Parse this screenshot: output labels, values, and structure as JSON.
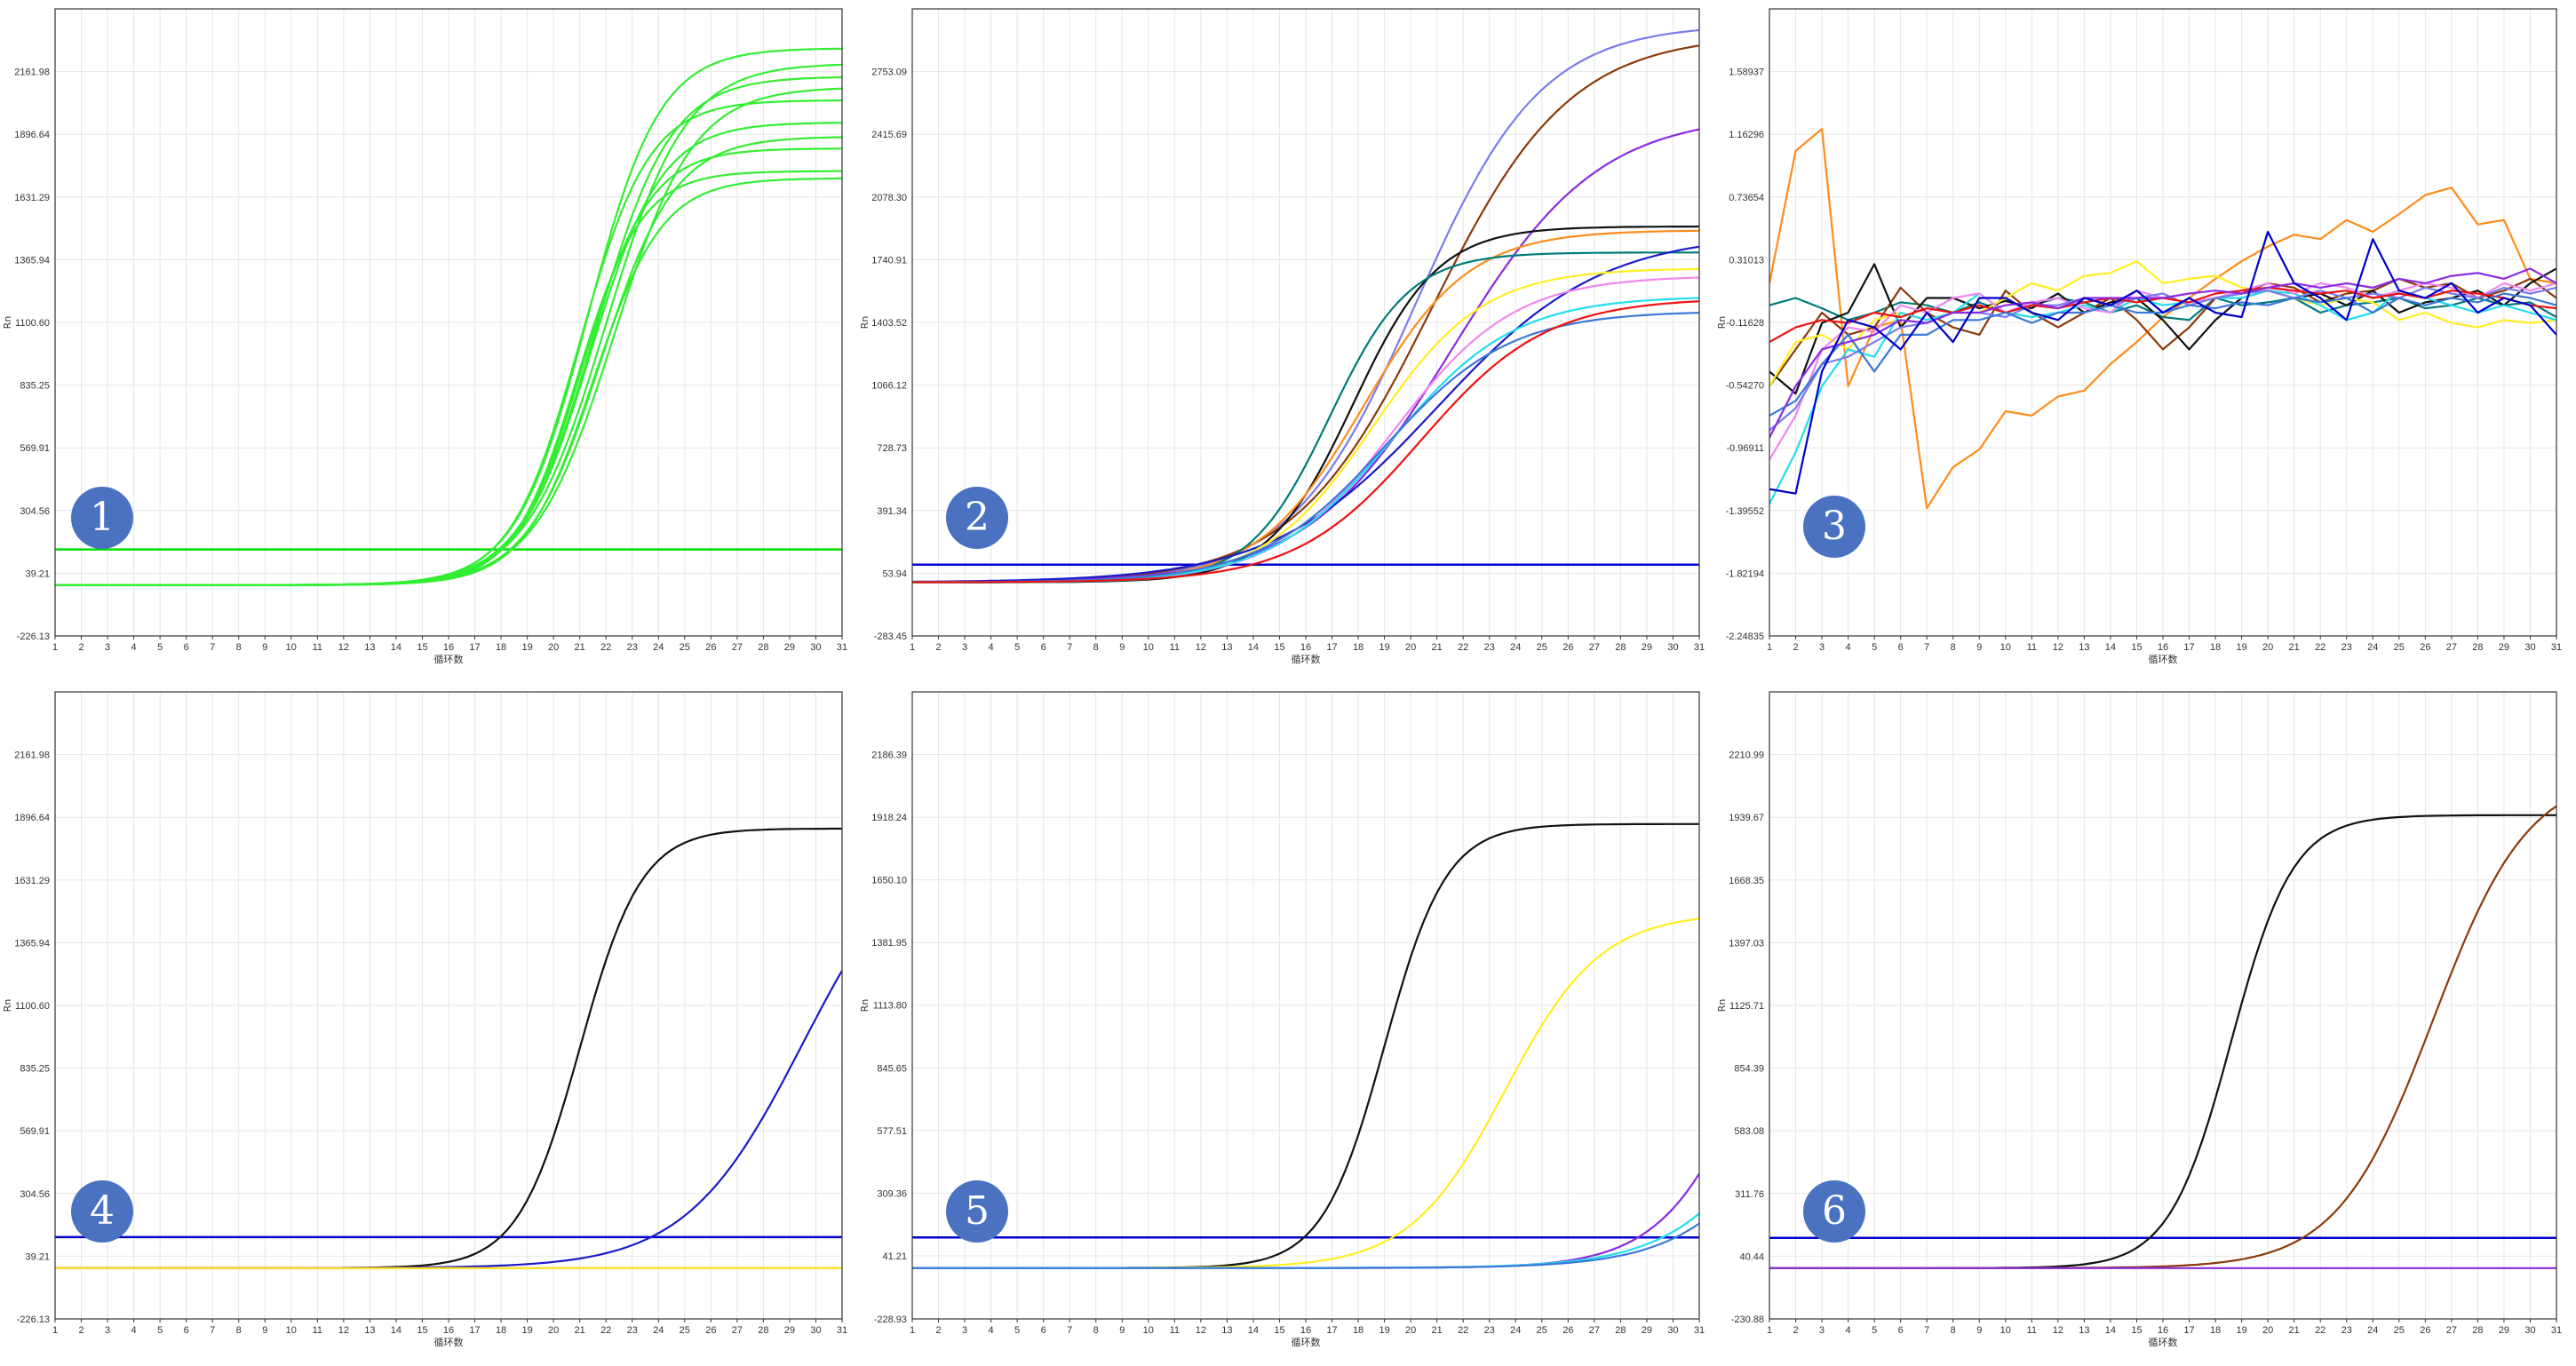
{
  "figure": {
    "badge_labels": [
      "1",
      "2",
      "3",
      "4",
      "5",
      "6"
    ]
  },
  "chart_data": [
    {
      "type": "line",
      "badge": "1",
      "xlabel": "循环数",
      "ylabel": "Rn",
      "x_ticks": [
        "1",
        "2",
        "3",
        "4",
        "5",
        "6",
        "7",
        "8",
        "9",
        "10",
        "11",
        "12",
        "13",
        "14",
        "15",
        "16",
        "17",
        "18",
        "19",
        "20",
        "21",
        "22",
        "23",
        "24",
        "25",
        "26",
        "27",
        "28",
        "29",
        "30",
        "31"
      ],
      "y_ticks": [
        "-226.13",
        "39.21",
        "304.56",
        "569.91",
        "835.25",
        "1100.60",
        "1365.94",
        "1631.29",
        "1896.64",
        "2161.98"
      ],
      "xlim": [
        1,
        31
      ],
      "ylim": [
        -226.13,
        2427.3
      ],
      "grid": true,
      "threshold": {
        "value": 140,
        "color": "#00dd00"
      },
      "series": [
        {
          "color": "#33ee33",
          "baseline": -11,
          "plateau": 2272,
          "midpoint": 21.3,
          "steepness": 0.73
        },
        {
          "color": "#33ee33",
          "baseline": -11,
          "plateau": 2208,
          "midpoint": 22.0,
          "steepness": 0.66
        },
        {
          "color": "#33ee33",
          "baseline": -11,
          "plateau": 2152,
          "midpoint": 21.6,
          "steepness": 0.7
        },
        {
          "color": "#33ee33",
          "baseline": -11,
          "plateau": 2108,
          "midpoint": 22.3,
          "steepness": 0.66
        },
        {
          "color": "#33ee33",
          "baseline": -11,
          "plateau": 2052,
          "midpoint": 21.0,
          "steepness": 0.76
        },
        {
          "color": "#33ee33",
          "baseline": -11,
          "plateau": 1958,
          "midpoint": 21.4,
          "steepness": 0.74
        },
        {
          "color": "#33ee33",
          "baseline": -11,
          "plateau": 1898,
          "midpoint": 21.8,
          "steepness": 0.71
        },
        {
          "color": "#33ee33",
          "baseline": -11,
          "plateau": 1848,
          "midpoint": 21.1,
          "steepness": 0.78
        },
        {
          "color": "#33ee33",
          "baseline": -11,
          "plateau": 1752,
          "midpoint": 20.9,
          "steepness": 0.82
        },
        {
          "color": "#33ee33",
          "baseline": -11,
          "plateau": 1722,
          "midpoint": 21.5,
          "steepness": 0.76
        }
      ]
    },
    {
      "type": "line",
      "badge": "2",
      "xlabel": "循环数",
      "ylabel": "Rn",
      "x_ticks": [
        "1",
        "2",
        "3",
        "4",
        "5",
        "6",
        "7",
        "8",
        "9",
        "10",
        "11",
        "12",
        "13",
        "14",
        "15",
        "16",
        "17",
        "18",
        "19",
        "20",
        "21",
        "22",
        "23",
        "24",
        "25",
        "26",
        "27",
        "28",
        "29",
        "30",
        "31"
      ],
      "y_ticks": [
        "-283.45",
        "53.94",
        "391.34",
        "728.73",
        "1066.12",
        "1403.52",
        "1740.91",
        "2078.30",
        "2415.69",
        "2753.09"
      ],
      "xlim": [
        1,
        31
      ],
      "ylim": [
        -283.45,
        3090.48
      ],
      "grid": true,
      "threshold": {
        "value": 100,
        "color": "#0000cc"
      },
      "series": [
        {
          "color": "#7b7bee",
          "baseline": 5,
          "plateau": 3003,
          "midpoint": 20.2,
          "steepness": 0.42
        },
        {
          "color": "#8b3a0a",
          "baseline": 5,
          "plateau": 2948,
          "midpoint": 20.8,
          "steepness": 0.38
        },
        {
          "color": "#8a2be2",
          "baseline": 5,
          "plateau": 2520,
          "midpoint": 21.6,
          "steepness": 0.36
        },
        {
          "color": "#111111",
          "baseline": 5,
          "plateau": 1915,
          "midpoint": 17.8,
          "steepness": 0.62
        },
        {
          "color": "#ff8c1a",
          "baseline": 5,
          "plateau": 1895,
          "midpoint": 18.2,
          "steepness": 0.5
        },
        {
          "color": "#007a7a",
          "baseline": 5,
          "plateau": 1775,
          "midpoint": 16.9,
          "steepness": 0.66
        },
        {
          "color": "#1a1acc",
          "baseline": 5,
          "plateau": 1880,
          "midpoint": 21.0,
          "steepness": 0.32
        },
        {
          "color": "#ffee22",
          "baseline": 5,
          "plateau": 1690,
          "midpoint": 18.6,
          "steepness": 0.48
        },
        {
          "color": "#ee88ee",
          "baseline": 5,
          "plateau": 1650,
          "midpoint": 19.4,
          "steepness": 0.44
        },
        {
          "color": "#22ddee",
          "baseline": 5,
          "plateau": 1540,
          "midpoint": 19.3,
          "steepness": 0.43
        },
        {
          "color": "#3c78d8",
          "baseline": 5,
          "plateau": 1460,
          "midpoint": 19.0,
          "steepness": 0.42
        },
        {
          "color": "#ee1111",
          "baseline": 5,
          "plateau": 1530,
          "midpoint": 20.4,
          "steepness": 0.42
        }
      ]
    },
    {
      "type": "line",
      "badge": "3",
      "xlabel": "循环数",
      "ylabel": "Rn",
      "x_ticks": [
        "1",
        "2",
        "3",
        "4",
        "5",
        "6",
        "7",
        "8",
        "9",
        "10",
        "11",
        "12",
        "13",
        "14",
        "15",
        "16",
        "17",
        "18",
        "19",
        "20",
        "21",
        "22",
        "23",
        "24",
        "25",
        "26",
        "27",
        "28",
        "29",
        "30",
        "31"
      ],
      "y_ticks": [
        "-2.24835",
        "-1.82194",
        "-1.39552",
        "-0.96911",
        "-0.54270",
        "-0.11628",
        "0.31013",
        "0.73654",
        "1.16296",
        "1.58937"
      ],
      "xlim": [
        1,
        31
      ],
      "ylim": [
        -2.24835,
        2.01578
      ],
      "grid": true,
      "series": [
        {
          "color": "#ff8c1a",
          "values": [
            0.15,
            1.05,
            1.2,
            -0.55,
            -0.15,
            -0.1,
            -1.38,
            -1.1,
            -0.98,
            -0.72,
            -0.75,
            -0.62,
            -0.58,
            -0.4,
            -0.25,
            -0.08,
            0.05,
            0.18,
            0.3,
            0.4,
            0.48,
            0.45,
            0.58,
            0.5,
            0.62,
            0.75,
            0.8,
            0.55,
            0.58,
            0.18,
            0.15
          ]
        },
        {
          "color": "#007a7a",
          "values": [
            0.0,
            0.05,
            -0.02,
            -0.1,
            -0.05,
            0.02,
            0.0,
            -0.05,
            0.02,
            -0.05,
            0.0,
            0.05,
            0.02,
            -0.05,
            0.0,
            -0.08,
            -0.1,
            0.05,
            0.0,
            0.02,
            0.05,
            -0.05,
            0.0,
            0.02,
            0.05,
            -0.02,
            0.0,
            0.05,
            0.0,
            0.02,
            -0.08
          ]
        },
        {
          "color": "#8b3a0a",
          "values": [
            -0.55,
            -0.3,
            -0.05,
            -0.2,
            -0.15,
            0.12,
            -0.05,
            -0.15,
            -0.2,
            0.1,
            -0.05,
            -0.15,
            -0.05,
            0.05,
            -0.1,
            -0.3,
            -0.15,
            0.05,
            0.08,
            0.15,
            0.12,
            0.02,
            0.08,
            0.1,
            0.18,
            0.12,
            0.15,
            0.05,
            0.1,
            0.18,
            0.05
          ]
        },
        {
          "color": "#111111",
          "values": [
            -0.45,
            -0.6,
            -0.12,
            -0.05,
            0.28,
            -0.15,
            0.05,
            0.05,
            -0.02,
            0.03,
            -0.02,
            0.08,
            -0.05,
            0.02,
            0.05,
            -0.1,
            -0.3,
            -0.1,
            0.05,
            0.1,
            0.05,
            0.08,
            0.0,
            0.1,
            -0.05,
            0.02,
            0.05,
            0.1,
            0.0,
            0.15,
            0.25
          ]
        },
        {
          "color": "#ffee22",
          "values": [
            -0.55,
            -0.25,
            -0.2,
            -0.3,
            -0.1,
            -0.05,
            -0.1,
            -0.05,
            -0.05,
            0.05,
            0.15,
            0.1,
            0.2,
            0.22,
            0.3,
            0.15,
            0.18,
            0.2,
            0.12,
            0.1,
            0.05,
            0.0,
            0.05,
            0.02,
            -0.1,
            -0.05,
            -0.12,
            -0.15,
            -0.1,
            -0.12,
            -0.1
          ]
        },
        {
          "color": "#22ddee",
          "values": [
            -1.35,
            -1.0,
            -0.55,
            -0.3,
            -0.35,
            -0.05,
            -0.1,
            -0.05,
            0.08,
            -0.05,
            -0.08,
            -0.05,
            0.0,
            -0.05,
            0.05,
            0.0,
            0.02,
            0.05,
            0.05,
            0.1,
            0.08,
            0.0,
            -0.1,
            -0.05,
            0.1,
            0.05,
            0.0,
            -0.05,
            0.0,
            -0.05,
            -0.1
          ]
        },
        {
          "color": "#ee88ee",
          "values": [
            -1.05,
            -0.75,
            -0.3,
            -0.15,
            -0.18,
            0.0,
            -0.05,
            0.05,
            0.08,
            -0.05,
            0.02,
            0.05,
            -0.02,
            -0.05,
            0.1,
            0.05,
            0.02,
            0.05,
            0.1,
            0.15,
            0.08,
            0.15,
            0.12,
            0.05,
            0.1,
            0.15,
            0.12,
            0.05,
            0.15,
            0.1,
            0.15
          ]
        },
        {
          "color": "#7b7bee",
          "values": [
            -0.85,
            -0.7,
            -0.4,
            -0.35,
            -0.25,
            -0.15,
            -0.12,
            -0.05,
            -0.05,
            -0.08,
            0.0,
            0.0,
            0.05,
            0.0,
            0.05,
            0.08,
            0.0,
            0.05,
            0.08,
            0.1,
            0.05,
            0.1,
            0.05,
            0.08,
            0.05,
            0.12,
            0.08,
            0.05,
            0.12,
            0.08,
            0.12
          ]
        },
        {
          "color": "#ee1111",
          "values": [
            -0.25,
            -0.15,
            -0.1,
            -0.12,
            -0.05,
            -0.08,
            -0.02,
            -0.05,
            0.0,
            -0.05,
            0.0,
            -0.02,
            0.02,
            0.05,
            0.02,
            0.05,
            0.02,
            0.08,
            0.1,
            0.12,
            0.1,
            0.08,
            0.1,
            0.05,
            0.08,
            0.05,
            0.1,
            0.08,
            0.05,
            0.0,
            -0.02
          ]
        },
        {
          "color": "#3c78d8",
          "values": [
            -0.75,
            -0.65,
            -0.4,
            -0.2,
            -0.45,
            -0.2,
            -0.2,
            -0.1,
            -0.1,
            -0.05,
            -0.12,
            -0.05,
            -0.05,
            0.0,
            -0.05,
            -0.05,
            0.0,
            -0.02,
            0.02,
            0.0,
            0.05,
            0.02,
            0.05,
            -0.05,
            0.05,
            0.0,
            0.05,
            0.02,
            0.08,
            0.05,
            0.0
          ]
        },
        {
          "color": "#8a2be2",
          "values": [
            -0.9,
            -0.55,
            -0.3,
            -0.25,
            -0.2,
            -0.1,
            -0.12,
            -0.05,
            -0.05,
            0.0,
            0.02,
            -0.02,
            0.05,
            0.05,
            0.05,
            0.05,
            0.08,
            0.1,
            0.08,
            0.12,
            0.15,
            0.12,
            0.15,
            0.12,
            0.18,
            0.15,
            0.2,
            0.22,
            0.18,
            0.25,
            0.15
          ]
        },
        {
          "color": "#0000cc",
          "values": [
            -1.25,
            -1.28,
            -0.45,
            -0.1,
            -0.15,
            -0.3,
            -0.05,
            -0.25,
            0.05,
            0.05,
            -0.05,
            -0.1,
            0.05,
            0.0,
            0.1,
            -0.05,
            0.05,
            -0.05,
            -0.08,
            0.5,
            0.15,
            0.05,
            -0.1,
            0.45,
            0.1,
            0.05,
            0.15,
            -0.05,
            0.05,
            0.0,
            -0.2
          ]
        }
      ]
    },
    {
      "type": "line",
      "badge": "4",
      "xlabel": "循环数",
      "ylabel": "Rn",
      "x_ticks": [
        "1",
        "2",
        "3",
        "4",
        "5",
        "6",
        "7",
        "8",
        "9",
        "10",
        "11",
        "12",
        "13",
        "14",
        "15",
        "16",
        "17",
        "18",
        "19",
        "20",
        "21",
        "22",
        "23",
        "24",
        "25",
        "26",
        "27",
        "28",
        "29",
        "30",
        "31"
      ],
      "y_ticks": [
        "-226.13",
        "39.21",
        "304.56",
        "569.91",
        "835.25",
        "1100.60",
        "1365.94",
        "1631.29",
        "1896.64",
        "2161.98"
      ],
      "xlim": [
        1,
        31
      ],
      "ylim": [
        -226.13,
        2427.3
      ],
      "grid": true,
      "threshold": {
        "value": 120,
        "color": "#0000cc"
      },
      "series": [
        {
          "color": "#111111",
          "baseline": -11,
          "plateau": 1860,
          "midpoint": 21.0,
          "steepness": 0.85
        },
        {
          "color": "#1a1acc",
          "baseline": -11,
          "plateau": 1900,
          "midpoint": 29.5,
          "steepness": 0.45
        },
        {
          "color": "#ee1111",
          "baseline": -11,
          "plateau": 0,
          "midpoint": 40,
          "steepness": 0.3
        },
        {
          "color": "#ffee22",
          "baseline": -11,
          "plateau": 0,
          "midpoint": 40,
          "steepness": 0.3
        }
      ]
    },
    {
      "type": "line",
      "badge": "5",
      "xlabel": "循环数",
      "ylabel": "Rn",
      "x_ticks": [
        "1",
        "2",
        "3",
        "4",
        "5",
        "6",
        "7",
        "8",
        "9",
        "10",
        "11",
        "12",
        "13",
        "14",
        "15",
        "16",
        "17",
        "18",
        "19",
        "20",
        "21",
        "22",
        "23",
        "24",
        "25",
        "26",
        "27",
        "28",
        "29",
        "30",
        "31"
      ],
      "y_ticks": [
        "-228.93",
        "41.21",
        "309.36",
        "577.51",
        "845.65",
        "1113.80",
        "1381.95",
        "1650.10",
        "1918.24",
        "2186.39"
      ],
      "xlim": [
        1,
        31
      ],
      "ylim": [
        -228.93,
        2454.54
      ],
      "grid": true,
      "threshold": {
        "value": 120,
        "color": "#0000cc"
      },
      "series": [
        {
          "color": "#111111",
          "baseline": -11,
          "plateau": 1900,
          "midpoint": 19.0,
          "steepness": 0.85
        },
        {
          "color": "#ffee22",
          "baseline": -11,
          "plateau": 1520,
          "midpoint": 23.6,
          "steepness": 0.55
        },
        {
          "color": "#8a2be2",
          "baseline": -11,
          "plateau": 2000,
          "midpoint": 33.5,
          "steepness": 0.55
        },
        {
          "color": "#22ddee",
          "baseline": -11,
          "plateau": 2000,
          "midpoint": 35.5,
          "steepness": 0.45
        },
        {
          "color": "#3c78d8",
          "baseline": -11,
          "plateau": 2000,
          "midpoint": 36.0,
          "steepness": 0.45
        }
      ]
    },
    {
      "type": "line",
      "badge": "6",
      "xlabel": "循环数",
      "ylabel": "Rn",
      "x_ticks": [
        "1",
        "2",
        "3",
        "4",
        "5",
        "6",
        "7",
        "8",
        "9",
        "10",
        "11",
        "12",
        "13",
        "14",
        "15",
        "16",
        "17",
        "18",
        "19",
        "20",
        "21",
        "22",
        "23",
        "24",
        "25",
        "26",
        "27",
        "28",
        "29",
        "30",
        "31"
      ],
      "y_ticks": [
        "-230.88",
        "40.44",
        "311.76",
        "583.08",
        "854.39",
        "1125.71",
        "1397.03",
        "1668.35",
        "1939.67",
        "2210.99"
      ],
      "xlim": [
        1,
        31
      ],
      "ylim": [
        -230.88,
        2482.31
      ],
      "grid": true,
      "threshold": {
        "value": 120,
        "color": "#0000cc"
      },
      "series": [
        {
          "color": "#111111",
          "baseline": -11,
          "plateau": 1960,
          "midpoint": 18.6,
          "steepness": 0.85
        },
        {
          "color": "#8b3a0a",
          "baseline": -11,
          "plateau": 2150,
          "midpoint": 26.3,
          "steepness": 0.55
        },
        {
          "color": "#8a2be2",
          "baseline": -11,
          "plateau": 0,
          "midpoint": 40,
          "steepness": 0.3
        }
      ]
    }
  ]
}
